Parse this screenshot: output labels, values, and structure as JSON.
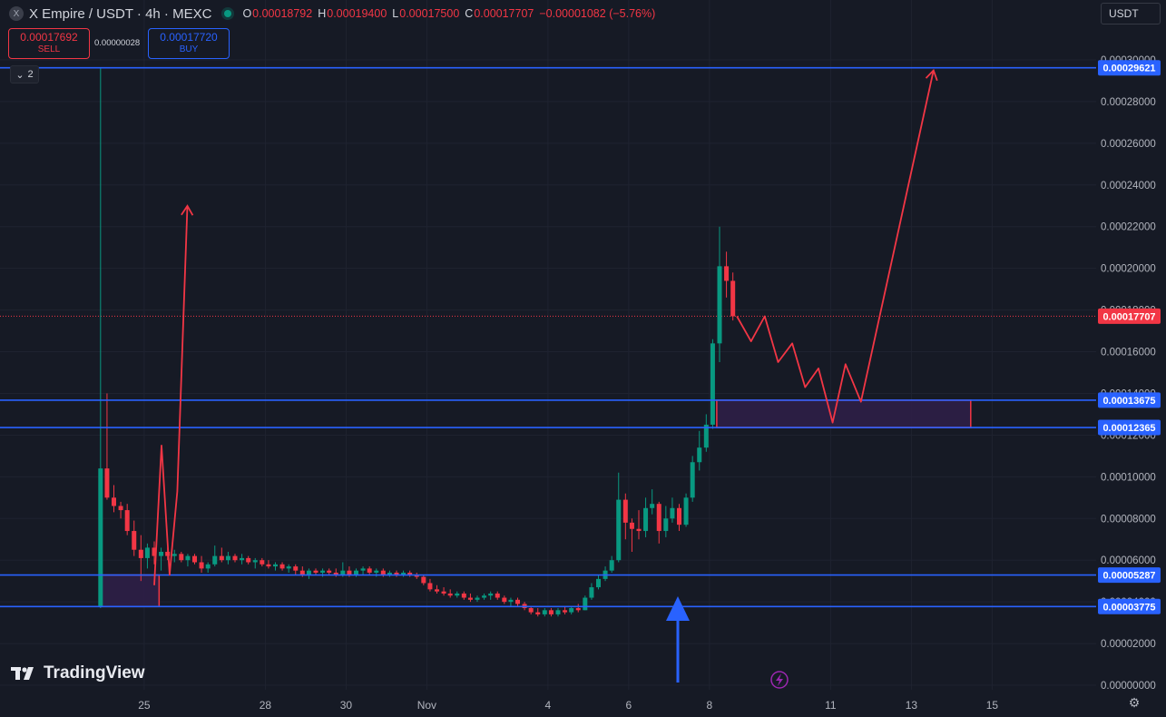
{
  "header": {
    "logo_letter": "X",
    "symbol_title": "X Empire / USDT · 4h · MEXC",
    "ohlc": [
      {
        "key": "O",
        "value": "0.00018792"
      },
      {
        "key": "H",
        "value": "0.00019400"
      },
      {
        "key": "L",
        "value": "0.00017500"
      },
      {
        "key": "C",
        "value": "0.00017707"
      }
    ],
    "change": "−0.00001082 (−5.76%)",
    "status_color": "#089981"
  },
  "trade": {
    "sell_price": "0.00017692",
    "sell_label": "SELL",
    "spread": "0.00000028",
    "buy_price": "0.00017720",
    "buy_label": "BUY"
  },
  "indicators_collapse": {
    "count": "2",
    "icon": "chevron-down-icon"
  },
  "currency_selector": {
    "value": "USDT"
  },
  "brand": {
    "name": "TradingView",
    "icon": "tradingview-logo-icon"
  },
  "colors": {
    "up": "#089981",
    "down": "#f23645",
    "level": "#2962ff",
    "zone_fill": "#2e1f47",
    "background": "#161a25"
  },
  "chart_data": {
    "type": "candlestick",
    "timeframe": "4h",
    "ylim": [
      0,
      0.0003
    ],
    "y_tick_labels": [
      "0.00030000",
      "0.00028000",
      "0.00026000",
      "0.00024000",
      "0.00022000",
      "0.00020000",
      "0.00018000",
      "0.00016000",
      "0.00014000",
      "0.00012000",
      "0.00010000",
      "0.00008000",
      "0.00006000",
      "0.00004000",
      "0.00002000",
      "0.00000000"
    ],
    "y_ticks": [
      0.0003,
      0.00028,
      0.00026,
      0.00024,
      0.00022,
      0.0002,
      0.00018,
      0.00016,
      0.00014,
      0.00012,
      0.0001,
      8e-05,
      6e-05,
      4e-05,
      2e-05,
      0
    ],
    "x_tick_labels": [
      "25",
      "28",
      "30",
      "Nov",
      "4",
      "6",
      "8",
      "11",
      "13",
      "15"
    ],
    "x_tick_days": [
      24.75,
      27.75,
      29.75,
      31.75,
      34.75,
      36.75,
      38.75,
      41.75,
      43.75,
      45.75
    ],
    "last_price": "0.00017707",
    "last_price_value": 0.00017707,
    "horizontal_levels": [
      {
        "value": 0.00029621,
        "label": "0.00029621"
      },
      {
        "value": 0.00013675,
        "label": "0.00013675"
      },
      {
        "value": 0.00012365,
        "label": "0.00012365"
      },
      {
        "value": 5.287e-05,
        "label": "0.00005287"
      },
      {
        "value": 3.775e-05,
        "label": "0.00003775"
      }
    ],
    "zones": [
      {
        "d1": 23.65,
        "d2": 25.12,
        "top": 5.287e-05,
        "bottom": 3.775e-05
      },
      {
        "d1": 38.93,
        "d2": 45.22,
        "top": 0.00013675,
        "bottom": 0.00012365
      }
    ],
    "projection_paths": [
      [
        [
          25.0,
          4.8e-05
        ],
        [
          25.18,
          0.000115
        ],
        [
          25.38,
          5.3e-05
        ],
        [
          25.57,
          9.3e-05
        ],
        [
          25.82,
          0.00023
        ]
      ],
      [
        [
          39.43,
          0.000177
        ],
        [
          39.78,
          0.000165
        ],
        [
          40.12,
          0.000177
        ],
        [
          40.45,
          0.000155
        ],
        [
          40.8,
          0.000164
        ],
        [
          41.12,
          0.000143
        ],
        [
          41.45,
          0.000152
        ],
        [
          41.8,
          0.000126
        ],
        [
          42.12,
          0.000154
        ],
        [
          42.5,
          0.000136
        ],
        [
          44.3,
          0.000295
        ]
      ]
    ],
    "candles": [
      {
        "d": 23.67,
        "o": 3.8e-05,
        "h": 0.000296,
        "l": 3.7e-05,
        "c": 0.000104
      },
      {
        "d": 23.83,
        "o": 0.000104,
        "h": 0.00014,
        "l": 8.9e-05,
        "c": 9e-05
      },
      {
        "d": 24.0,
        "o": 9e-05,
        "h": 9.6e-05,
        "l": 8.3e-05,
        "c": 8.6e-05
      },
      {
        "d": 24.17,
        "o": 8.6e-05,
        "h": 8.8e-05,
        "l": 8e-05,
        "c": 8.4e-05
      },
      {
        "d": 24.33,
        "o": 8.4e-05,
        "h": 8.7e-05,
        "l": 7.2e-05,
        "c": 7.4e-05
      },
      {
        "d": 24.5,
        "o": 7.4e-05,
        "h": 7.9e-05,
        "l": 6.2e-05,
        "c": 6.5e-05
      },
      {
        "d": 24.67,
        "o": 6.5e-05,
        "h": 7.2e-05,
        "l": 5e-05,
        "c": 6.1e-05
      },
      {
        "d": 24.83,
        "o": 6.1e-05,
        "h": 6.8e-05,
        "l": 5.6e-05,
        "c": 6.6e-05
      },
      {
        "d": 25.0,
        "o": 6.6e-05,
        "h": 6.9e-05,
        "l": 5.8e-05,
        "c": 6.2e-05
      },
      {
        "d": 25.17,
        "o": 6.2e-05,
        "h": 6.6e-05,
        "l": 5.5e-05,
        "c": 6.4e-05
      },
      {
        "d": 25.33,
        "o": 6.4e-05,
        "h": 6.6e-05,
        "l": 6e-05,
        "c": 6.2e-05
      },
      {
        "d": 25.5,
        "o": 6.2e-05,
        "h": 6.5e-05,
        "l": 5.9e-05,
        "c": 6.3e-05
      },
      {
        "d": 25.67,
        "o": 6.3e-05,
        "h": 6.4e-05,
        "l": 5.9e-05,
        "c": 6e-05
      },
      {
        "d": 25.83,
        "o": 6e-05,
        "h": 6.3e-05,
        "l": 5.7e-05,
        "c": 6.2e-05
      },
      {
        "d": 26.0,
        "o": 6.2e-05,
        "h": 6.3e-05,
        "l": 5.8e-05,
        "c": 5.9e-05
      },
      {
        "d": 26.17,
        "o": 5.9e-05,
        "h": 6.2e-05,
        "l": 5.4e-05,
        "c": 5.6e-05
      },
      {
        "d": 26.33,
        "o": 5.6e-05,
        "h": 5.9e-05,
        "l": 5.4e-05,
        "c": 5.8e-05
      },
      {
        "d": 26.5,
        "o": 5.8e-05,
        "h": 6.7e-05,
        "l": 5.7e-05,
        "c": 6.2e-05
      },
      {
        "d": 26.67,
        "o": 6.2e-05,
        "h": 6.6e-05,
        "l": 5.9e-05,
        "c": 6e-05
      },
      {
        "d": 26.83,
        "o": 6e-05,
        "h": 6.4e-05,
        "l": 5.8e-05,
        "c": 6.2e-05
      },
      {
        "d": 27.0,
        "o": 6.2e-05,
        "h": 6.3e-05,
        "l": 5.9e-05,
        "c": 6e-05
      },
      {
        "d": 27.17,
        "o": 6e-05,
        "h": 6.3e-05,
        "l": 5.8e-05,
        "c": 6.1e-05
      },
      {
        "d": 27.33,
        "o": 6.1e-05,
        "h": 6.2e-05,
        "l": 5.8e-05,
        "c": 5.9e-05
      },
      {
        "d": 27.5,
        "o": 5.9e-05,
        "h": 6.1e-05,
        "l": 5.6e-05,
        "c": 6e-05
      },
      {
        "d": 27.67,
        "o": 6e-05,
        "h": 6.1e-05,
        "l": 5.7e-05,
        "c": 5.8e-05
      },
      {
        "d": 27.83,
        "o": 5.8e-05,
        "h": 6e-05,
        "l": 5.6e-05,
        "c": 5.7e-05
      },
      {
        "d": 28.0,
        "o": 5.7e-05,
        "h": 5.9e-05,
        "l": 5.5e-05,
        "c": 5.8e-05
      },
      {
        "d": 28.17,
        "o": 5.8e-05,
        "h": 5.9e-05,
        "l": 5.5e-05,
        "c": 5.6e-05
      },
      {
        "d": 28.33,
        "o": 5.6e-05,
        "h": 5.8e-05,
        "l": 5.4e-05,
        "c": 5.7e-05
      },
      {
        "d": 28.5,
        "o": 5.7e-05,
        "h": 5.8e-05,
        "l": 5.3e-05,
        "c": 5.5e-05
      },
      {
        "d": 28.67,
        "o": 5.5e-05,
        "h": 5.7e-05,
        "l": 5.2e-05,
        "c": 5.3e-05
      },
      {
        "d": 28.83,
        "o": 5.3e-05,
        "h": 5.6e-05,
        "l": 5.1e-05,
        "c": 5.5e-05
      },
      {
        "d": 29.0,
        "o": 5.5e-05,
        "h": 5.6e-05,
        "l": 5.3e-05,
        "c": 5.4e-05
      },
      {
        "d": 29.17,
        "o": 5.4e-05,
        "h": 5.6e-05,
        "l": 5.2e-05,
        "c": 5.5e-05
      },
      {
        "d": 29.33,
        "o": 5.5e-05,
        "h": 5.6e-05,
        "l": 5.3e-05,
        "c": 5.4e-05
      },
      {
        "d": 29.5,
        "o": 5.4e-05,
        "h": 5.6e-05,
        "l": 5.2e-05,
        "c": 5.3e-05
      },
      {
        "d": 29.67,
        "o": 5.3e-05,
        "h": 5.9e-05,
        "l": 5.2e-05,
        "c": 5.5e-05
      },
      {
        "d": 29.83,
        "o": 5.5e-05,
        "h": 5.7e-05,
        "l": 5.2e-05,
        "c": 5.3e-05
      },
      {
        "d": 30.0,
        "o": 5.3e-05,
        "h": 5.6e-05,
        "l": 5.2e-05,
        "c": 5.5e-05
      },
      {
        "d": 30.17,
        "o": 5.5e-05,
        "h": 5.7e-05,
        "l": 5.3e-05,
        "c": 5.6e-05
      },
      {
        "d": 30.33,
        "o": 5.6e-05,
        "h": 5.7e-05,
        "l": 5.3e-05,
        "c": 5.4e-05
      },
      {
        "d": 30.5,
        "o": 5.4e-05,
        "h": 5.6e-05,
        "l": 5.2e-05,
        "c": 5.5e-05
      },
      {
        "d": 30.67,
        "o": 5.5e-05,
        "h": 5.6e-05,
        "l": 5.2e-05,
        "c": 5.3e-05
      },
      {
        "d": 30.83,
        "o": 5.3e-05,
        "h": 5.5e-05,
        "l": 5.2e-05,
        "c": 5.4e-05
      },
      {
        "d": 31.0,
        "o": 5.4e-05,
        "h": 5.5e-05,
        "l": 5.2e-05,
        "c": 5.3e-05
      },
      {
        "d": 31.17,
        "o": 5.3e-05,
        "h": 5.5e-05,
        "l": 5.2e-05,
        "c": 5.4e-05
      },
      {
        "d": 31.33,
        "o": 5.4e-05,
        "h": 5.5e-05,
        "l": 5.2e-05,
        "c": 5.3e-05
      },
      {
        "d": 31.5,
        "o": 5.3e-05,
        "h": 5.4e-05,
        "l": 5.1e-05,
        "c": 5.2e-05
      },
      {
        "d": 31.67,
        "o": 5.2e-05,
        "h": 5.3e-05,
        "l": 4.8e-05,
        "c": 4.9e-05
      },
      {
        "d": 31.83,
        "o": 4.9e-05,
        "h": 5.1e-05,
        "l": 4.5e-05,
        "c": 4.6e-05
      },
      {
        "d": 32.0,
        "o": 4.6e-05,
        "h": 4.8e-05,
        "l": 4.4e-05,
        "c": 4.5e-05
      },
      {
        "d": 32.17,
        "o": 4.5e-05,
        "h": 4.7e-05,
        "l": 4.3e-05,
        "c": 4.4e-05
      },
      {
        "d": 32.33,
        "o": 4.4e-05,
        "h": 4.6e-05,
        "l": 4.2e-05,
        "c": 4.3e-05
      },
      {
        "d": 32.5,
        "o": 4.3e-05,
        "h": 4.5e-05,
        "l": 4.2e-05,
        "c": 4.4e-05
      },
      {
        "d": 32.67,
        "o": 4.4e-05,
        "h": 4.5e-05,
        "l": 4.1e-05,
        "c": 4.2e-05
      },
      {
        "d": 32.83,
        "o": 4.2e-05,
        "h": 4.4e-05,
        "l": 4e-05,
        "c": 4.1e-05
      },
      {
        "d": 33.0,
        "o": 4.1e-05,
        "h": 4.3e-05,
        "l": 4e-05,
        "c": 4.2e-05
      },
      {
        "d": 33.17,
        "o": 4.2e-05,
        "h": 4.4e-05,
        "l": 4.1e-05,
        "c": 4.3e-05
      },
      {
        "d": 33.33,
        "o": 4.3e-05,
        "h": 4.5e-05,
        "l": 4.1e-05,
        "c": 4.4e-05
      },
      {
        "d": 33.5,
        "o": 4.4e-05,
        "h": 4.5e-05,
        "l": 4.1e-05,
        "c": 4.2e-05
      },
      {
        "d": 33.67,
        "o": 4.2e-05,
        "h": 4.3e-05,
        "l": 3.9e-05,
        "c": 4e-05
      },
      {
        "d": 33.83,
        "o": 4e-05,
        "h": 4.2e-05,
        "l": 3.8e-05,
        "c": 4.1e-05
      },
      {
        "d": 34.0,
        "o": 4.1e-05,
        "h": 4.2e-05,
        "l": 3.8e-05,
        "c": 3.9e-05
      },
      {
        "d": 34.17,
        "o": 3.9e-05,
        "h": 4e-05,
        "l": 3.6e-05,
        "c": 3.7e-05
      },
      {
        "d": 34.33,
        "o": 3.7e-05,
        "h": 3.8e-05,
        "l": 3.4e-05,
        "c": 3.5e-05
      },
      {
        "d": 34.5,
        "o": 3.5e-05,
        "h": 3.7e-05,
        "l": 3.3e-05,
        "c": 3.4e-05
      },
      {
        "d": 34.67,
        "o": 3.4e-05,
        "h": 3.7e-05,
        "l": 3.3e-05,
        "c": 3.6e-05
      },
      {
        "d": 34.83,
        "o": 3.6e-05,
        "h": 3.7e-05,
        "l": 3.3e-05,
        "c": 3.4e-05
      },
      {
        "d": 35.0,
        "o": 3.4e-05,
        "h": 3.7e-05,
        "l": 3.3e-05,
        "c": 3.6e-05
      },
      {
        "d": 35.17,
        "o": 3.6e-05,
        "h": 3.8e-05,
        "l": 3.4e-05,
        "c": 3.5e-05
      },
      {
        "d": 35.33,
        "o": 3.5e-05,
        "h": 3.8e-05,
        "l": 3.4e-05,
        "c": 3.7e-05
      },
      {
        "d": 35.5,
        "o": 3.7e-05,
        "h": 3.9e-05,
        "l": 3.5e-05,
        "c": 3.6e-05
      },
      {
        "d": 35.67,
        "o": 3.6e-05,
        "h": 4.3e-05,
        "l": 3.6e-05,
        "c": 4.2e-05
      },
      {
        "d": 35.83,
        "o": 4.2e-05,
        "h": 4.9e-05,
        "l": 4.1e-05,
        "c": 4.7e-05
      },
      {
        "d": 36.0,
        "o": 4.7e-05,
        "h": 5.3e-05,
        "l": 4.6e-05,
        "c": 5.1e-05
      },
      {
        "d": 36.17,
        "o": 5.1e-05,
        "h": 5.7e-05,
        "l": 5e-05,
        "c": 5.5e-05
      },
      {
        "d": 36.33,
        "o": 5.5e-05,
        "h": 6.2e-05,
        "l": 5.4e-05,
        "c": 6e-05
      },
      {
        "d": 36.5,
        "o": 6e-05,
        "h": 0.000102,
        "l": 5.9e-05,
        "c": 8.9e-05
      },
      {
        "d": 36.67,
        "o": 8.9e-05,
        "h": 9.2e-05,
        "l": 7e-05,
        "c": 7.8e-05
      },
      {
        "d": 36.83,
        "o": 7.8e-05,
        "h": 8e-05,
        "l": 6.4e-05,
        "c": 7.5e-05
      },
      {
        "d": 37.0,
        "o": 7.5e-05,
        "h": 8.4e-05,
        "l": 7e-05,
        "c": 7.4e-05
      },
      {
        "d": 37.17,
        "o": 7.4e-05,
        "h": 9e-05,
        "l": 7.1e-05,
        "c": 8.5e-05
      },
      {
        "d": 37.33,
        "o": 8.5e-05,
        "h": 9.4e-05,
        "l": 8.2e-05,
        "c": 8.7e-05
      },
      {
        "d": 37.5,
        "o": 8.7e-05,
        "h": 8.8e-05,
        "l": 6.8e-05,
        "c": 7.4e-05
      },
      {
        "d": 37.67,
        "o": 7.4e-05,
        "h": 8.6e-05,
        "l": 7.1e-05,
        "c": 8e-05
      },
      {
        "d": 37.83,
        "o": 8e-05,
        "h": 9e-05,
        "l": 7.8e-05,
        "c": 8.5e-05
      },
      {
        "d": 38.0,
        "o": 8.5e-05,
        "h": 8.7e-05,
        "l": 7.4e-05,
        "c": 7.7e-05
      },
      {
        "d": 38.17,
        "o": 7.7e-05,
        "h": 9.2e-05,
        "l": 7.6e-05,
        "c": 9e-05
      },
      {
        "d": 38.33,
        "o": 9e-05,
        "h": 0.00011,
        "l": 8.8e-05,
        "c": 0.000107
      },
      {
        "d": 38.5,
        "o": 0.000107,
        "h": 0.000122,
        "l": 0.000103,
        "c": 0.000114
      },
      {
        "d": 38.67,
        "o": 0.000114,
        "h": 0.00013,
        "l": 0.000112,
        "c": 0.000125
      },
      {
        "d": 38.83,
        "o": 0.000125,
        "h": 0.000166,
        "l": 0.000123,
        "c": 0.000164
      },
      {
        "d": 39.0,
        "o": 0.000164,
        "h": 0.00022,
        "l": 0.000155,
        "c": 0.000201
      },
      {
        "d": 39.17,
        "o": 0.000201,
        "h": 0.000208,
        "l": 0.000186,
        "c": 0.000194
      },
      {
        "d": 39.33,
        "o": 0.000194,
        "h": 0.000198,
        "l": 0.000175,
        "c": 0.000177
      }
    ]
  }
}
